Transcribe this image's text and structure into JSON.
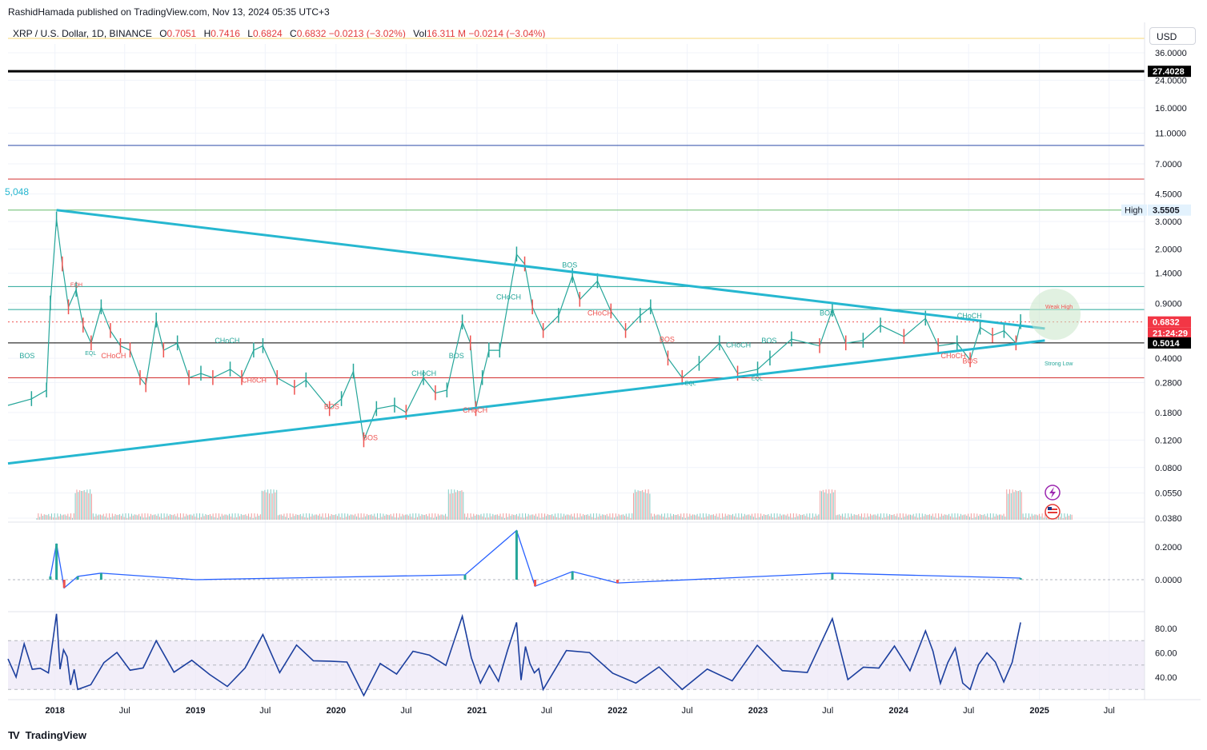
{
  "header": {
    "published": "RashidHamada published on TradingView.com, Nov 13, 2024 05:35 UTC+3"
  },
  "legend": {
    "symbol": "XRP / U.S. Dollar, 1D, BINANCE",
    "open_label": "O",
    "open": "0.7051",
    "high_label": "H",
    "high": "0.7416",
    "low_label": "L",
    "low": "0.6824",
    "close_label": "C",
    "close": "0.6832",
    "change": "−0.0213 (−3.02%)",
    "vol_label": "Vol",
    "vol": "16.311 M",
    "vol_change": "−0.0214 (−3.04%)"
  },
  "currency_button": "USD",
  "footer": {
    "brand": "TradingView"
  },
  "colors": {
    "accent": "#26c6da",
    "up": "#26a69a",
    "down": "#ef5350",
    "rsi": "#1c3f9e",
    "black_line": "#000000"
  },
  "icons": [
    "flash-icon",
    "us-flag-icon"
  ],
  "chart_data": [
    {
      "type": "line",
      "panel": "price",
      "scale": "log",
      "x_ticks": [
        "2018",
        "Jul",
        "2019",
        "Jul",
        "2020",
        "Jul",
        "2021",
        "Jul",
        "2022",
        "Jul",
        "2023",
        "Jul",
        "2024",
        "Jul",
        "2025",
        "Jul"
      ],
      "y_ticks": [
        "36.0000",
        "24.0000",
        "16.0000",
        "11.0000",
        "7.0000",
        "4.5000",
        "3.0000",
        "2.0000",
        "1.4000",
        "0.9000",
        "0.4000",
        "0.2800",
        "0.1800",
        "0.1200",
        "0.0800",
        "0.0550",
        "0.0380"
      ],
      "price_tags": [
        {
          "label": "",
          "value": "27.4028",
          "color": "#000000"
        },
        {
          "label": "High",
          "value": "3.5505",
          "color": "#e3f2fd"
        },
        {
          "label": "",
          "value": "0.6832",
          "color": "#f23645"
        },
        {
          "label": "",
          "value": "21:24:29",
          "color": "#f23645"
        },
        {
          "label": "",
          "value": "0.5014",
          "color": "#000000"
        }
      ],
      "left_label": "5,048",
      "trendlines": [
        {
          "name": "upper",
          "from": [
            "2018-01-05",
            3.55
          ],
          "to": [
            "2025-01-15",
            0.62
          ]
        },
        {
          "name": "lower",
          "from": [
            "2017-09-01",
            0.085
          ],
          "to": [
            "2025-01-15",
            0.52
          ]
        }
      ],
      "horizontal_levels": [
        {
          "value": 27.4,
          "color": "#000000"
        },
        {
          "value": 9.2,
          "color": "#2a4aa8"
        },
        {
          "value": 5.6,
          "color": "#d32f2f"
        },
        {
          "value": 3.55,
          "color": "#66bb6a"
        },
        {
          "value": 1.15,
          "color": "#26a69a"
        },
        {
          "value": 0.82,
          "color": "#26a69a"
        },
        {
          "value": 0.5014,
          "color": "#000000"
        },
        {
          "value": 0.3,
          "color": "#d32f2f"
        }
      ],
      "close_series": [
        [
          "2017-09-01",
          0.2
        ],
        [
          "2017-11-01",
          0.22
        ],
        [
          "2017-12-10",
          0.25
        ],
        [
          "2017-12-20",
          0.9
        ],
        [
          "2018-01-05",
          3.1
        ],
        [
          "2018-01-20",
          1.6
        ],
        [
          "2018-02-05",
          0.85
        ],
        [
          "2018-02-25",
          1.1
        ],
        [
          "2018-03-15",
          0.65
        ],
        [
          "2018-04-05",
          0.5
        ],
        [
          "2018-05-01",
          0.85
        ],
        [
          "2018-05-25",
          0.6
        ],
        [
          "2018-06-20",
          0.48
        ],
        [
          "2018-07-15",
          0.45
        ],
        [
          "2018-08-10",
          0.3
        ],
        [
          "2018-08-25",
          0.27
        ],
        [
          "2018-09-21",
          0.7
        ],
        [
          "2018-10-10",
          0.45
        ],
        [
          "2018-11-15",
          0.5
        ],
        [
          "2018-12-15",
          0.3
        ],
        [
          "2019-01-15",
          0.32
        ],
        [
          "2019-02-15",
          0.3
        ],
        [
          "2019-04-01",
          0.34
        ],
        [
          "2019-05-01",
          0.3
        ],
        [
          "2019-06-01",
          0.45
        ],
        [
          "2019-06-25",
          0.48
        ],
        [
          "2019-08-01",
          0.3
        ],
        [
          "2019-09-15",
          0.26
        ],
        [
          "2019-10-15",
          0.29
        ],
        [
          "2019-12-15",
          0.19
        ],
        [
          "2020-01-15",
          0.22
        ],
        [
          "2020-02-15",
          0.33
        ],
        [
          "2020-03-13",
          0.12
        ],
        [
          "2020-04-15",
          0.19
        ],
        [
          "2020-06-01",
          0.2
        ],
        [
          "2020-07-01",
          0.18
        ],
        [
          "2020-08-15",
          0.3
        ],
        [
          "2020-09-15",
          0.24
        ],
        [
          "2020-10-15",
          0.25
        ],
        [
          "2020-11-24",
          0.68
        ],
        [
          "2020-12-15",
          0.5
        ],
        [
          "2020-12-29",
          0.19
        ],
        [
          "2021-01-15",
          0.3
        ],
        [
          "2021-02-01",
          0.45
        ],
        [
          "2021-03-01",
          0.45
        ],
        [
          "2021-04-14",
          1.85
        ],
        [
          "2021-05-05",
          1.6
        ],
        [
          "2021-05-25",
          0.85
        ],
        [
          "2021-06-22",
          0.6
        ],
        [
          "2021-08-01",
          0.75
        ],
        [
          "2021-09-06",
          1.35
        ],
        [
          "2021-09-25",
          0.95
        ],
        [
          "2021-11-10",
          1.25
        ],
        [
          "2021-12-15",
          0.8
        ],
        [
          "2022-01-22",
          0.6
        ],
        [
          "2022-03-01",
          0.75
        ],
        [
          "2022-03-28",
          0.85
        ],
        [
          "2022-05-12",
          0.4
        ],
        [
          "2022-06-18",
          0.3
        ],
        [
          "2022-08-01",
          0.37
        ],
        [
          "2022-09-23",
          0.5
        ],
        [
          "2022-11-09",
          0.32
        ],
        [
          "2022-12-31",
          0.34
        ],
        [
          "2023-02-01",
          0.4
        ],
        [
          "2023-03-29",
          0.53
        ],
        [
          "2023-06-10",
          0.48
        ],
        [
          "2023-07-13",
          0.82
        ],
        [
          "2023-08-17",
          0.5
        ],
        [
          "2023-10-01",
          0.52
        ],
        [
          "2023-11-15",
          0.65
        ],
        [
          "2024-01-15",
          0.55
        ],
        [
          "2024-03-11",
          0.72
        ],
        [
          "2024-04-13",
          0.48
        ],
        [
          "2024-06-01",
          0.5
        ],
        [
          "2024-07-05",
          0.39
        ],
        [
          "2024-07-31",
          0.63
        ],
        [
          "2024-09-01",
          0.56
        ],
        [
          "2024-10-01",
          0.6
        ],
        [
          "2024-11-01",
          0.5
        ],
        [
          "2024-11-13",
          0.6832
        ]
      ],
      "annotations": [
        "BOS",
        "CHoCH",
        "EQL",
        "EQH",
        "Weak High",
        "Strong Low"
      ]
    },
    {
      "type": "line",
      "panel": "macd",
      "y_ticks": [
        "0.2000",
        "0.0000"
      ],
      "series": [
        {
          "values": [
            [
              "2017-12-20",
              0.02
            ],
            [
              "2018-01-05",
              0.22
            ],
            [
              "2018-01-25",
              -0.05
            ],
            [
              "2018-03-01",
              0.02
            ],
            [
              "2018-05-01",
              0.04
            ],
            [
              "2019-01-01",
              0.0
            ],
            [
              "2020-12-01",
              0.03
            ],
            [
              "2021-04-14",
              0.3
            ],
            [
              "2021-06-01",
              -0.04
            ],
            [
              "2021-09-06",
              0.05
            ],
            [
              "2022-01-01",
              -0.02
            ],
            [
              "2023-07-13",
              0.04
            ],
            [
              "2024-11-13",
              0.01
            ]
          ]
        }
      ]
    },
    {
      "type": "line",
      "panel": "rsi",
      "y_ticks": [
        "80.00",
        "60.00",
        "40.00"
      ],
      "band": [
        30,
        70
      ],
      "series": [
        {
          "values": [
            [
              "2017-09-01",
              55
            ],
            [
              "2018-01-05",
              92
            ],
            [
              "2018-03-01",
              30
            ],
            [
              "2018-09-21",
              70
            ],
            [
              "2019-06-25",
              75
            ],
            [
              "2020-03-13",
              25
            ],
            [
              "2020-11-24",
              90
            ],
            [
              "2021-04-14",
              85
            ],
            [
              "2021-06-22",
              30
            ],
            [
              "2022-06-18",
              30
            ],
            [
              "2023-07-13",
              88
            ],
            [
              "2024-03-11",
              78
            ],
            [
              "2024-07-05",
              30
            ],
            [
              "2024-11-13",
              85
            ]
          ]
        }
      ]
    }
  ]
}
